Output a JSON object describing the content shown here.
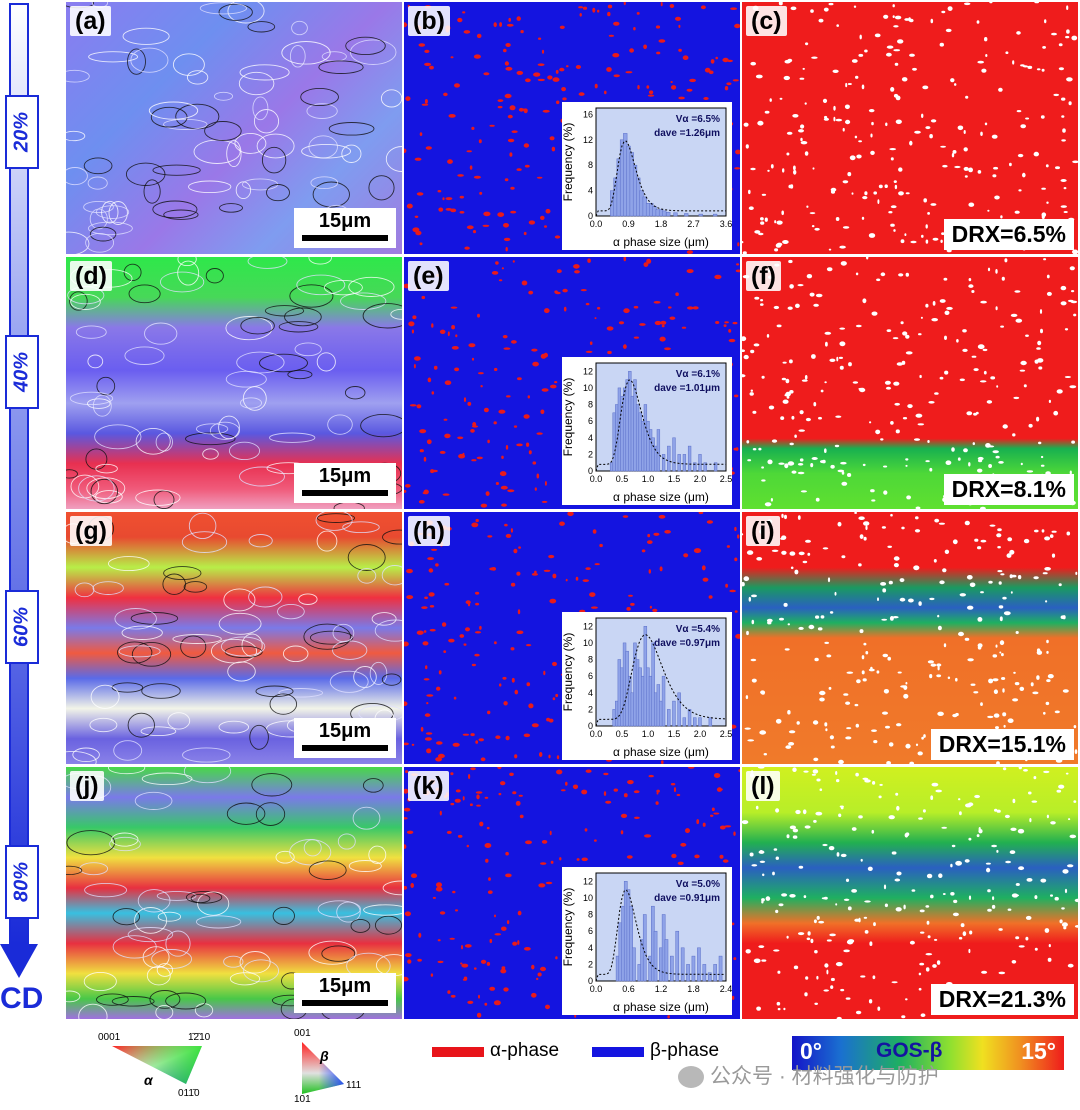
{
  "strain_labels": [
    "20%",
    "40%",
    "60%",
    "80%"
  ],
  "direction_label": "CD",
  "scale_label": "15μm",
  "panels": {
    "a": "(a)",
    "b": "(b)",
    "c": "(c)",
    "d": "(d)",
    "e": "(e)",
    "f": "(f)",
    "g": "(g)",
    "h": "(h)",
    "i": "(i)",
    "j": "(j)",
    "k": "(k)",
    "l": "(l)"
  },
  "drx_labels": [
    "DRX=6.5%",
    "DRX=8.1%",
    "DRX=15.1%",
    "DRX=21.3%"
  ],
  "chart_data": [
    {
      "type": "bar",
      "panel": "(b)",
      "xlabel": "α phase size (μm)",
      "ylabel": "Frequency (%)",
      "xticks": [
        "0.0",
        "0.9",
        "1.8",
        "2.7",
        "3.6"
      ],
      "yticks": [
        "0",
        "4",
        "8",
        "12",
        "16"
      ],
      "xlim": [
        0,
        3.6
      ],
      "ylim": [
        0,
        17
      ],
      "annotation_v": "Vα =6.5%",
      "annotation_d": "dave =1.26μm",
      "x": [
        0.45,
        0.54,
        0.63,
        0.72,
        0.81,
        0.9,
        0.99,
        1.08,
        1.17,
        1.26,
        1.35,
        1.44,
        1.53,
        1.62,
        1.71,
        1.8,
        1.89,
        2.0,
        2.2,
        2.5,
        2.9,
        3.3
      ],
      "values": [
        4,
        6,
        9,
        12,
        13,
        11,
        10,
        8,
        6,
        4,
        3,
        2,
        2,
        1.5,
        1,
        1,
        0.8,
        0.6,
        0.5,
        0.4,
        0.3,
        0.3
      ]
    },
    {
      "type": "bar",
      "panel": "(e)",
      "xlabel": "α phase size (μm)",
      "ylabel": "Frequency (%)",
      "xticks": [
        "0.0",
        "0.5",
        "1.0",
        "1.5",
        "2.0",
        "2.5"
      ],
      "yticks": [
        "0",
        "2",
        "4",
        "6",
        "8",
        "10",
        "12"
      ],
      "xlim": [
        0,
        2.5
      ],
      "ylim": [
        0,
        13
      ],
      "annotation_v": "Vα =6.1%",
      "annotation_d": "dave =1.01μm",
      "x": [
        0.3,
        0.35,
        0.4,
        0.45,
        0.5,
        0.55,
        0.6,
        0.65,
        0.7,
        0.75,
        0.8,
        0.85,
        0.9,
        0.95,
        1.0,
        1.05,
        1.1,
        1.15,
        1.2,
        1.3,
        1.4,
        1.5,
        1.6,
        1.7,
        1.8,
        1.9,
        2.0,
        2.1,
        2.3
      ],
      "values": [
        1,
        7,
        8,
        10,
        9,
        10,
        11,
        12,
        9,
        11,
        8,
        7,
        6,
        8,
        6,
        5,
        4,
        3,
        5,
        2,
        3,
        4,
        2,
        2,
        3,
        1,
        2,
        1,
        1
      ]
    },
    {
      "type": "bar",
      "panel": "(h)",
      "xlabel": "α phase size (μm)",
      "ylabel": "Frequency (%)",
      "xticks": [
        "0.0",
        "0.5",
        "1.0",
        "1.5",
        "2.0",
        "2.5"
      ],
      "yticks": [
        "0",
        "2",
        "4",
        "6",
        "8",
        "10",
        "12"
      ],
      "xlim": [
        0,
        2.5
      ],
      "ylim": [
        0,
        13
      ],
      "annotation_v": "Vα =5.4%",
      "annotation_d": "dave =0.97μm",
      "x": [
        0.35,
        0.4,
        0.45,
        0.5,
        0.55,
        0.6,
        0.65,
        0.7,
        0.75,
        0.8,
        0.85,
        0.9,
        0.95,
        1.0,
        1.05,
        1.1,
        1.15,
        1.2,
        1.25,
        1.3,
        1.4,
        1.5,
        1.6,
        1.7,
        1.8,
        1.9,
        2.0,
        2.2
      ],
      "values": [
        2,
        3,
        8,
        7,
        10,
        9,
        6,
        4,
        10,
        8,
        7,
        6,
        12,
        7,
        6,
        10,
        4,
        5,
        3,
        6,
        2,
        3,
        4,
        1,
        2,
        1,
        1,
        1
      ]
    },
    {
      "type": "bar",
      "panel": "(k)",
      "xlabel": "α phase size (μm)",
      "ylabel": "Frequency (%)",
      "xticks": [
        "0.0",
        "0.6",
        "1.2",
        "1.8",
        "2.4"
      ],
      "yticks": [
        "0",
        "2",
        "4",
        "6",
        "8",
        "10",
        "12"
      ],
      "xlim": [
        0,
        2.4
      ],
      "ylim": [
        0,
        13
      ],
      "annotation_v": "Vα =5.0%",
      "annotation_d": "dave =0.91μm",
      "x": [
        0.4,
        0.45,
        0.5,
        0.55,
        0.6,
        0.65,
        0.7,
        0.8,
        0.85,
        0.9,
        1.0,
        1.05,
        1.1,
        1.2,
        1.25,
        1.3,
        1.4,
        1.5,
        1.6,
        1.7,
        1.8,
        1.9,
        2.0,
        2.1,
        2.2,
        2.3
      ],
      "values": [
        3,
        7,
        9,
        12,
        11,
        9,
        4,
        2,
        5,
        8,
        3,
        9,
        6,
        4,
        8,
        5,
        3,
        6,
        4,
        2,
        3,
        4,
        2,
        1,
        2,
        3
      ]
    }
  ],
  "legend": {
    "alpha_triangle": {
      "top_left": "0001",
      "top_right": "1̄2̄10",
      "symbol": "α",
      "bottom": "011̄0"
    },
    "beta_triangle": {
      "top": "001",
      "symbol": "β",
      "left": "101",
      "right": "111"
    },
    "alpha_phase": "α-phase",
    "beta_phase": "β-phase",
    "gos_min": "0°",
    "gos_label": "GOS-β",
    "gos_max": "15°"
  },
  "watermark": "公众号 · 材料强化与防护",
  "colors": {
    "alpha": "#e8141a",
    "beta": "#1414e0",
    "accent": "#1a2bd8"
  }
}
